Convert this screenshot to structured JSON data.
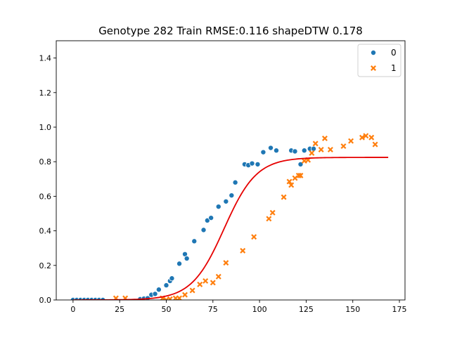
{
  "chart_data": {
    "type": "scatter",
    "title": "Genotype 282 Train RMSE:0.116 shapeDTW 0.178",
    "xlabel": "",
    "ylabel": "",
    "xlim": [
      -9,
      178
    ],
    "ylim": [
      0,
      1.5
    ],
    "xticks": [
      0,
      25,
      50,
      75,
      100,
      125,
      150,
      175
    ],
    "yticks": [
      0.0,
      0.2,
      0.4,
      0.6,
      0.8,
      1.0,
      1.2,
      1.4
    ],
    "xtick_labels": [
      "0",
      "25",
      "50",
      "75",
      "100",
      "125",
      "150",
      "175"
    ],
    "ytick_labels": [
      "0.0",
      "0.2",
      "0.4",
      "0.6",
      "0.8",
      "1.0",
      "1.2",
      "1.4"
    ],
    "grid": false,
    "legend_position": "top-right",
    "series": [
      {
        "name": "0",
        "marker": "circle",
        "color": "#1f77b4",
        "points": [
          [
            0,
            0.0
          ],
          [
            2,
            0.0
          ],
          [
            4,
            0.0
          ],
          [
            6,
            0.0
          ],
          [
            8,
            0.0
          ],
          [
            10,
            0.0
          ],
          [
            12,
            0.0
          ],
          [
            14,
            0.0
          ],
          [
            16,
            0.0
          ],
          [
            36,
            0.005
          ],
          [
            38,
            0.008
          ],
          [
            40,
            0.01
          ],
          [
            42,
            0.03
          ],
          [
            44,
            0.035
          ],
          [
            46,
            0.06
          ],
          [
            50,
            0.085
          ],
          [
            52,
            0.11
          ],
          [
            53,
            0.125
          ],
          [
            57,
            0.21
          ],
          [
            60,
            0.265
          ],
          [
            61,
            0.24
          ],
          [
            65,
            0.34
          ],
          [
            70,
            0.405
          ],
          [
            72,
            0.46
          ],
          [
            74,
            0.475
          ],
          [
            78,
            0.54
          ],
          [
            82,
            0.57
          ],
          [
            85,
            0.605
          ],
          [
            87,
            0.68
          ],
          [
            92,
            0.785
          ],
          [
            94,
            0.78
          ],
          [
            96,
            0.79
          ],
          [
            99,
            0.785
          ],
          [
            102,
            0.855
          ],
          [
            106,
            0.88
          ],
          [
            109,
            0.865
          ],
          [
            117,
            0.865
          ],
          [
            119,
            0.86
          ],
          [
            122,
            0.785
          ],
          [
            124,
            0.865
          ],
          [
            127,
            0.875
          ],
          [
            129,
            0.875
          ]
        ]
      },
      {
        "name": "1",
        "marker": "x",
        "color": "#ff7f0e",
        "points": [
          [
            23,
            0.01
          ],
          [
            28,
            0.01
          ],
          [
            48,
            0.01
          ],
          [
            50,
            0.0
          ],
          [
            52,
            0.005
          ],
          [
            55,
            0.01
          ],
          [
            57,
            0.01
          ],
          [
            60,
            0.03
          ],
          [
            64,
            0.055
          ],
          [
            68,
            0.09
          ],
          [
            71,
            0.11
          ],
          [
            75,
            0.1
          ],
          [
            78,
            0.135
          ],
          [
            82,
            0.215
          ],
          [
            91,
            0.285
          ],
          [
            97,
            0.365
          ],
          [
            105,
            0.47
          ],
          [
            107,
            0.505
          ],
          [
            113,
            0.595
          ],
          [
            116,
            0.685
          ],
          [
            117,
            0.665
          ],
          [
            119,
            0.705
          ],
          [
            121,
            0.72
          ],
          [
            122,
            0.72
          ],
          [
            124,
            0.805
          ],
          [
            126,
            0.81
          ],
          [
            128,
            0.85
          ],
          [
            130,
            0.905
          ],
          [
            133,
            0.87
          ],
          [
            135,
            0.935
          ],
          [
            138,
            0.87
          ],
          [
            145,
            0.89
          ],
          [
            149,
            0.92
          ],
          [
            155,
            0.94
          ],
          [
            157,
            0.95
          ],
          [
            160,
            0.94
          ],
          [
            162,
            0.9
          ]
        ]
      }
    ],
    "fit_curve": {
      "type": "logistic",
      "color": "#e60000",
      "L": 0.825,
      "k": 0.115,
      "x0": 81,
      "x_range": [
        0,
        169
      ]
    }
  }
}
